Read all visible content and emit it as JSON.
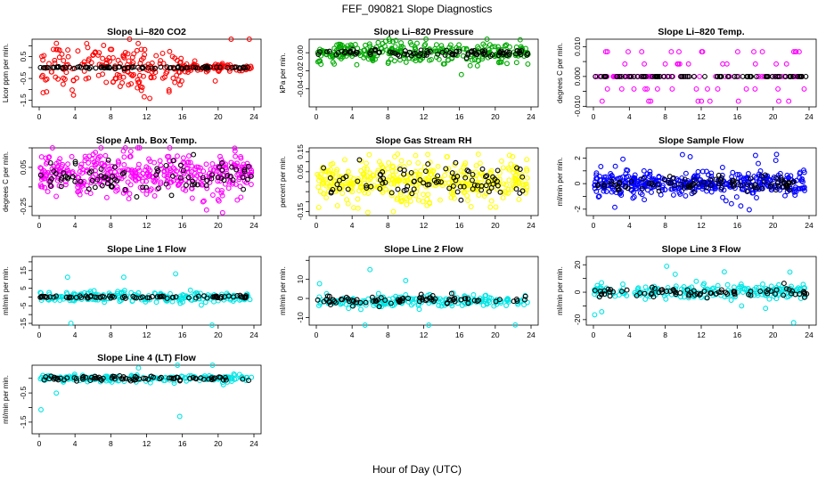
{
  "figure": {
    "title": "FEF_090821  Slope Diagnostics",
    "xlabel": "Hour of Day (UTC)"
  },
  "chart_data": [
    {
      "type": "scatter",
      "title": "Slope Li–820 CO2",
      "ylabel": "Licor ppm per min.",
      "xlim": [
        0,
        24
      ],
      "ylim": [
        -1.8,
        1.3
      ],
      "yticks": [
        -1.5,
        -0.5,
        0.5
      ],
      "yticks_labels": [
        "-1.5",
        "-0.5",
        "0.5"
      ],
      "yticks_secondary": [
        -1,
        0,
        1
      ],
      "xticks": [
        0,
        4,
        8,
        12,
        16,
        20,
        24
      ],
      "series": [
        {
          "color": "#ff0000",
          "spread": 0.55,
          "max_abs": 1.6,
          "center": 0.0,
          "count": 260,
          "spread_end": 0.08,
          "taper_hour": 16
        },
        {
          "color": "#000000",
          "spread": 0.02,
          "center": 0.0,
          "count": 90
        }
      ]
    },
    {
      "type": "scatter",
      "title": "Slope Li–820 Pressure",
      "ylabel": "kPa per min.",
      "xlim": [
        0,
        24
      ],
      "ylim": [
        -0.06,
        0.015
      ],
      "yticks": [
        -0.04,
        -0.02,
        0.0
      ],
      "yticks_labels": [
        "-0.04",
        "-0.02",
        "0.00"
      ],
      "xticks": [
        0,
        4,
        8,
        12,
        16,
        20,
        24
      ],
      "series": [
        {
          "color": "#00aa00",
          "spread": 0.006,
          "max_abs": 0.012,
          "center": 0.0,
          "count": 300
        },
        {
          "color": "#000000",
          "spread": 0.002,
          "center": 0.0,
          "count": 90
        }
      ]
    },
    {
      "type": "scatter",
      "title": "Slope Li–820 Temp.",
      "ylabel": "degrees C per min.",
      "xlim": [
        0,
        24
      ],
      "ylim": [
        -0.0102,
        0.0125
      ],
      "yticks": [
        -0.01,
        0.0,
        0.01
      ],
      "yticks_labels": [
        "-0.010",
        "0.000",
        "0.010"
      ],
      "yticks_secondary": [
        -0.005,
        0.005
      ],
      "xticks": [
        0,
        4,
        8,
        12,
        16,
        20,
        24
      ],
      "series": [
        {
          "color": "#ff00ff",
          "spread": 0.0,
          "levels": [
            -0.0042,
            0.0042,
            0.0083,
            -0.0083
          ],
          "center": 0.0,
          "count": 110
        },
        {
          "color": "#000000",
          "spread": 0.0,
          "center": 0.0,
          "count": 80
        }
      ]
    },
    {
      "type": "scatter",
      "title": "Slope Amb. Box Temp.",
      "ylabel": "degrees C per min.",
      "xlim": [
        0,
        24
      ],
      "ylim": [
        -0.32,
        0.2
      ],
      "yticks": [
        -0.25,
        0.05
      ],
      "yticks_labels": [
        "-0.25",
        "0.05"
      ],
      "yticks_secondary": [
        -0.1,
        0.2
      ],
      "xticks": [
        0,
        4,
        8,
        12,
        16,
        20,
        24
      ],
      "series": [
        {
          "color": "#ff00ff",
          "spread": 0.08,
          "max_abs": 0.3,
          "center": 0.0,
          "count": 420
        },
        {
          "color": "#000000",
          "spread": 0.06,
          "center": -0.03,
          "count": 90
        }
      ]
    },
    {
      "type": "scatter",
      "title": "Slope Gas Stream RH",
      "ylabel": "percent per min.",
      "xlim": [
        0,
        24
      ],
      "ylim": [
        -0.17,
        0.17
      ],
      "yticks": [
        -0.15,
        -0.05,
        0.05,
        0.15
      ],
      "yticks_labels": [
        "-0.15",
        "",
        "0.05",
        "0.15"
      ],
      "yticks_secondary": [
        -0.1,
        0.0,
        0.1
      ],
      "xticks": [
        0,
        4,
        8,
        12,
        16,
        20,
        24
      ],
      "series": [
        {
          "color": "#ffff00",
          "spread": 0.05,
          "max_abs": 0.16,
          "center": 0.0,
          "count": 420
        },
        {
          "color": "#000000",
          "spread": 0.04,
          "center": 0.0,
          "count": 90
        }
      ]
    },
    {
      "type": "scatter",
      "title": "Slope Sample Flow",
      "ylabel": "ml/min per min.",
      "xlim": [
        0,
        24
      ],
      "ylim": [
        -2.5,
        2.8
      ],
      "yticks": [
        -2,
        -1,
        0,
        1,
        2
      ],
      "yticks_labels": [
        "-2",
        "",
        "0",
        "",
        "2"
      ],
      "xticks": [
        0,
        4,
        8,
        12,
        16,
        20,
        24
      ],
      "series": [
        {
          "color": "#0000ff",
          "spread": 0.45,
          "max_abs": 2.4,
          "center": 0.0,
          "count": 420
        },
        {
          "color": "#000000",
          "spread": 0.3,
          "center": 0.0,
          "count": 90
        }
      ]
    },
    {
      "type": "scatter",
      "title": "Slope Line 1 Flow",
      "ylabel": "ml/min per min.",
      "xlim": [
        0,
        24
      ],
      "ylim": [
        -16,
        23
      ],
      "yticks": [
        -15,
        -10,
        -5,
        0,
        5,
        10,
        15,
        20
      ],
      "yticks_labels": [
        "-15",
        "",
        "-5",
        "",
        "5",
        "",
        "15",
        ""
      ],
      "yticks_secondary": [],
      "xticks": [
        0,
        4,
        8,
        12,
        16,
        20,
        24
      ],
      "series": [
        {
          "color": "#00e5e5",
          "spread": 1.5,
          "max_abs": 21,
          "center": 0.0,
          "count": 220
        },
        {
          "color": "#000000",
          "spread": 0.4,
          "center": 0.0,
          "count": 80
        }
      ]
    },
    {
      "type": "scatter",
      "title": "Slope Line 2 Flow",
      "ylabel": "ml/min per min.",
      "xlim": [
        0,
        24
      ],
      "ylim": [
        -14,
        22
      ],
      "yticks": [
        -10,
        0,
        10,
        20
      ],
      "yticks_labels": [
        "-10",
        "0",
        "10",
        ""
      ],
      "xticks": [
        0,
        4,
        8,
        12,
        16,
        20,
        24
      ],
      "series": [
        {
          "color": "#00e5e5",
          "spread": 1.5,
          "max_abs": 20,
          "center": -1.5,
          "count": 220
        },
        {
          "color": "#000000",
          "spread": 1.2,
          "center": -1.0,
          "count": 80
        }
      ]
    },
    {
      "type": "scatter",
      "title": "Slope Line 3 Flow",
      "ylabel": "ml/min per min.",
      "xlim": [
        0,
        24
      ],
      "ylim": [
        -24,
        26
      ],
      "yticks": [
        -20,
        -10,
        0,
        10,
        20
      ],
      "yticks_labels": [
        "-20",
        "",
        "0",
        "",
        "20"
      ],
      "xticks": [
        0,
        4,
        8,
        12,
        16,
        20,
        24
      ],
      "series": [
        {
          "color": "#00e5e5",
          "spread": 2.5,
          "max_abs": 24,
          "center": 0.0,
          "count": 220
        },
        {
          "color": "#000000",
          "spread": 1.5,
          "center": 0.0,
          "count": 80
        }
      ]
    },
    {
      "type": "scatter",
      "title": "Slope Line 4 (LT) Flow",
      "ylabel": "ml/min per min.",
      "xlim": [
        0,
        24
      ],
      "ylim": [
        -1.9,
        0.45
      ],
      "yticks": [
        -1.5,
        -0.5
      ],
      "yticks_labels": [
        "-1.5",
        "-0.5"
      ],
      "yticks_secondary": [
        -1.0,
        0.0
      ],
      "xticks": [
        0,
        4,
        8,
        12,
        16,
        20,
        24
      ],
      "series": [
        {
          "color": "#00e5e5",
          "spread": 0.06,
          "max_abs": 1.75,
          "center": 0.0,
          "count": 200
        },
        {
          "color": "#000000",
          "spread": 0.04,
          "center": 0.0,
          "count": 80
        }
      ]
    }
  ]
}
